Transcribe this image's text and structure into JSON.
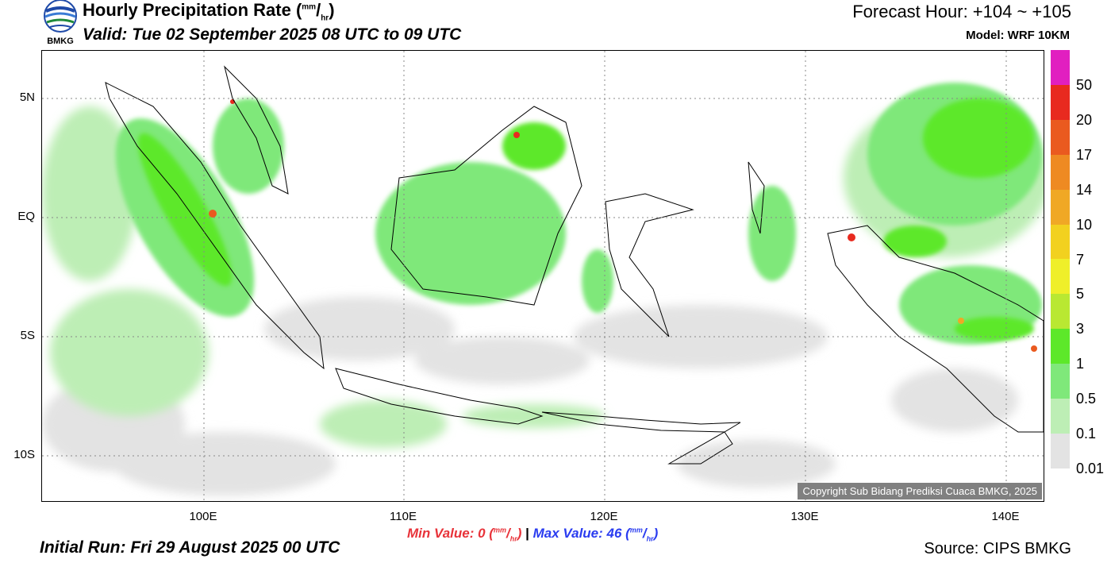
{
  "header": {
    "title": "Hourly Precipitation Rate (",
    "title_unit_sup": "mm",
    "title_unit_sep": "/",
    "title_unit_sub": "hr",
    "title_close": ")",
    "valid": "Valid: Tue 02 September 2025 08 UTC to 09 UTC",
    "forecast_hour": "Forecast Hour: +104 ~ +105",
    "model": "Model: WRF 10KM",
    "logo_text": "BMKG"
  },
  "map": {
    "lat_labels": [
      "5N",
      "EQ",
      "5S",
      "10S"
    ],
    "lon_labels": [
      "100E",
      "110E",
      "120E",
      "130E",
      "140E"
    ],
    "copyright": "Copyright Sub Bidang Prediksi Cuaca BMKG, 2025"
  },
  "colorbar": {
    "labels": [
      "50",
      "20",
      "17",
      "14",
      "10",
      "7",
      "5",
      "3",
      "1",
      "0.5",
      "0.1",
      "0.01"
    ],
    "colors": [
      "#e11fc0",
      "#e82a1f",
      "#ea5a1f",
      "#ee8a22",
      "#f0a825",
      "#f2d11f",
      "#efef2a",
      "#b9e832",
      "#5de82a",
      "#7fe87a",
      "#bdeeb5",
      "#e3e3e3"
    ]
  },
  "footer": {
    "min_label": "Min Value:   0 (",
    "min_unit_sup": "mm",
    "min_unit_sub": "hr",
    "min_close": ")",
    "separator": "|",
    "max_label": "Max Value:  46 (",
    "max_unit_sup": "mm",
    "max_unit_sub": "hr",
    "max_close": ")",
    "initial_run": "Initial Run: Fri 29 August 2025 00 UTC",
    "source": "Source: CIPS BMKG"
  }
}
